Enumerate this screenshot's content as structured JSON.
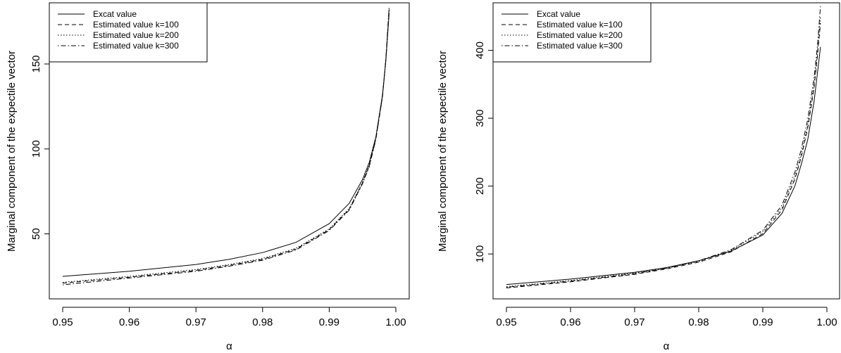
{
  "chart_data": [
    {
      "type": "line",
      "xlabel": "α",
      "ylabel": "Marginal component of the expectile vector",
      "xlim": [
        0.95,
        0.999
      ],
      "ylim": [
        13,
        186
      ],
      "xticks": [
        "0.95",
        "0.96",
        "0.97",
        "0.98",
        "0.99",
        "1.00"
      ],
      "xtick_values": [
        0.95,
        0.96,
        0.97,
        0.98,
        0.99,
        1.0
      ],
      "yticks": [
        "50",
        "100",
        "150"
      ],
      "ytick_values": [
        50,
        100,
        150
      ],
      "legend_position": "top-left",
      "x": [
        0.95,
        0.96,
        0.97,
        0.975,
        0.98,
        0.985,
        0.99,
        0.993,
        0.995,
        0.996,
        0.997,
        0.998,
        0.9985,
        0.999
      ],
      "series": [
        {
          "name": "Excat value",
          "dash": "solid",
          "values": [
            25,
            28,
            32,
            35,
            39,
            45,
            56,
            68,
            82,
            92,
            107,
            132,
            152,
            180
          ]
        },
        {
          "name": "Estimated value k=100",
          "dash": "dashed",
          "values": [
            21,
            24.5,
            28.5,
            31.5,
            35,
            41,
            52.5,
            64.5,
            80,
            90,
            106,
            131,
            152,
            182
          ]
        },
        {
          "name": "Estimated value k=200",
          "dash": "dotted",
          "values": [
            21.5,
            25,
            29,
            32,
            35.5,
            41.5,
            53,
            65,
            80.5,
            90.5,
            106.5,
            131.5,
            153,
            183
          ]
        },
        {
          "name": "Estimated value k=300",
          "dash": "dotdash",
          "values": [
            20,
            24,
            28,
            31,
            34.5,
            40.5,
            52,
            64,
            79.5,
            89.5,
            105.5,
            131,
            153,
            184
          ]
        }
      ]
    },
    {
      "type": "line",
      "xlabel": "α",
      "ylabel": "Marginal component of the expectile vector",
      "xlim": [
        0.95,
        0.999
      ],
      "ylim": [
        37,
        470
      ],
      "xticks": [
        "0.95",
        "0.96",
        "0.97",
        "0.98",
        "0.99",
        "1.00"
      ],
      "xtick_values": [
        0.95,
        0.96,
        0.97,
        0.98,
        0.99,
        1.0
      ],
      "yticks": [
        "100",
        "200",
        "300",
        "400"
      ],
      "ytick_values": [
        100,
        200,
        300,
        400
      ],
      "legend_position": "top-left",
      "x": [
        0.95,
        0.96,
        0.97,
        0.975,
        0.98,
        0.985,
        0.99,
        0.993,
        0.995,
        0.996,
        0.997,
        0.998,
        0.9985,
        0.999
      ],
      "series": [
        {
          "name": "Excat value",
          "dash": "solid",
          "values": [
            55,
            63,
            73,
            80,
            90,
            104,
            128,
            160,
            200,
            232,
            268,
            325,
            365,
            405
          ]
        },
        {
          "name": "Estimated value k=100",
          "dash": "dashed",
          "values": [
            50,
            59,
            70,
            78,
            88,
            103,
            130,
            165,
            210,
            243,
            285,
            345,
            390,
            440
          ]
        },
        {
          "name": "Estimated value k=200",
          "dash": "dotted",
          "values": [
            52,
            61,
            72,
            79,
            89,
            105,
            133,
            168,
            214,
            247,
            290,
            350,
            395,
            450
          ]
        },
        {
          "name": "Estimated value k=300",
          "dash": "dotdash",
          "values": [
            51,
            60,
            71,
            79,
            90,
            106,
            135,
            172,
            220,
            254,
            298,
            360,
            405,
            465
          ]
        }
      ]
    }
  ]
}
